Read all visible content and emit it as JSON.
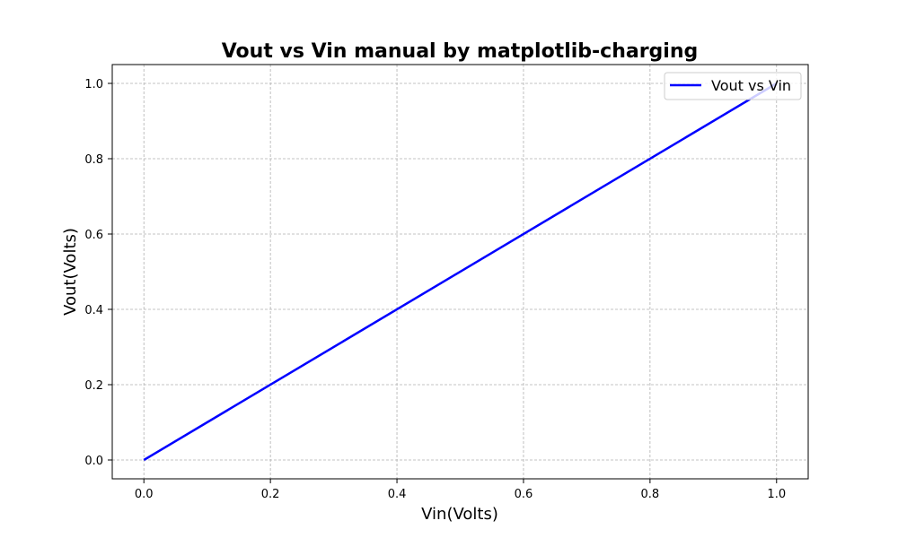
{
  "chart_data": {
    "type": "line",
    "title": "Vout vs Vin manual by matplotlib-charging",
    "xlabel": "Vin(Volts)",
    "ylabel": "Vout(Volts)",
    "xlim": [
      -0.05,
      1.05
    ],
    "ylim": [
      -0.05,
      1.05
    ],
    "xticks": [
      0.0,
      0.2,
      0.4,
      0.6,
      0.8,
      1.0
    ],
    "xtick_labels": [
      "0.0",
      "0.2",
      "0.4",
      "0.6",
      "0.8",
      "1.0"
    ],
    "yticks": [
      0.0,
      0.2,
      0.4,
      0.6,
      0.8,
      1.0
    ],
    "ytick_labels": [
      "0.0",
      "0.2",
      "0.4",
      "0.6",
      "0.8",
      "1.0"
    ],
    "grid": true,
    "legend_position": "top-right",
    "series": [
      {
        "name": "Vout vs Vin",
        "color": "#0000ff",
        "x": [
          0.0,
          1.0
        ],
        "y": [
          0.0,
          1.0
        ]
      }
    ]
  }
}
